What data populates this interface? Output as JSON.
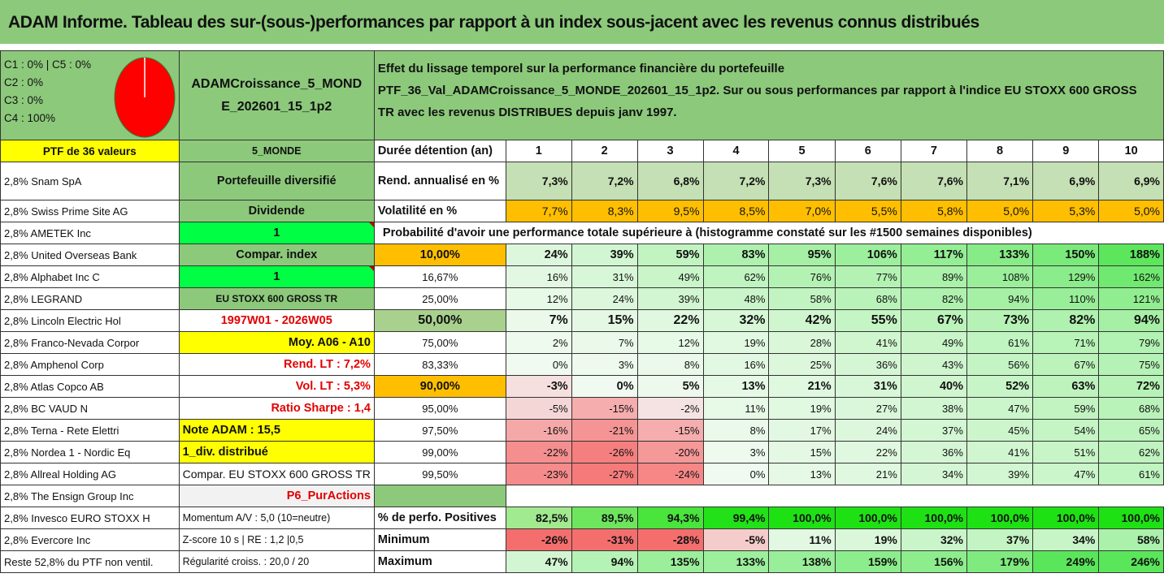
{
  "title": "ADAM Informe. Tableau des sur-(sous-)performances par rapport à un index sous-jacent avec les revenus connus distribués",
  "header": {
    "classes": [
      "C1 : 0% | C5 : 0%",
      "C2 : 0%",
      "C3 : 0%",
      "C4 : 100%"
    ],
    "portfolio_name_1": "ADAMCroissance_5_MOND",
    "portfolio_name_2": "E_202601_15_1p2",
    "description_1": "Effet du lissage temporel sur la performance financière du portefeuille",
    "description_2": "PTF_36_Val_ADAMCroissance_5_MONDE_202601_15_1p2. Sur ou sous performances par rapport à l'indice EU STOXX 600 GROSS",
    "description_3": "TR avec les revenus DISTRIBUES depuis janv 1997.",
    "pie_colors": {
      "fill": "#ff0000",
      "line": "#ffffff",
      "border": "#8cc97b"
    }
  },
  "ptf_label": "PTF de 36 valeurs",
  "ptf_code": "5_MONDE",
  "duration_label": "Durée détention (an)",
  "years": [
    "1",
    "2",
    "3",
    "4",
    "5",
    "6",
    "7",
    "8",
    "9",
    "10"
  ],
  "holdings": [
    "2,8% Snam SpA",
    "2,8% Swiss Prime Site AG",
    "2,8% AMETEK Inc",
    "2,8% United Overseas Bank",
    "2,8% Alphabet Inc C",
    "2,8% LEGRAND",
    "2,8% Lincoln Electric Hol",
    "2,8% Franco-Nevada Corpor",
    "2,8% Amphenol Corp",
    "2,8% Atlas Copco AB",
    "2,8% BC VAUD N",
    "2,8% Terna - Rete Elettri",
    "2,8% Nordea 1 - Nordic Eq",
    "2,8% Allreal Holding AG",
    "2,8% The Ensign Group Inc",
    "2,8% Invesco EURO STOXX H",
    "2,8% Evercore Inc",
    "Reste 52,8% du PTF non ventil."
  ],
  "info": [
    "Portefeuille diversifié",
    "Dividende",
    "1",
    "Compar. index",
    "1",
    "EU STOXX 600 GROSS TR",
    "1997W01 - 2026W05",
    "Moy. A06 - A10",
    "Rend. LT : 7,2%",
    "Vol. LT : 5,3%",
    "Ratio Sharpe : 1,4",
    "Note ADAM : 15,5",
    "1_div. distribué",
    "Compar. EU STOXX 600 GROSS TR",
    "P6_PurActions",
    "Momentum A/V : 5,0 (10=neutre)",
    "Z-score 10 s | RE : 1,2 |0,5",
    "Régularité croiss. : 20,0 / 20"
  ],
  "rend_label": "Rend. annualisé en %",
  "rend": [
    "7,3%",
    "7,2%",
    "6,8%",
    "7,2%",
    "7,3%",
    "7,6%",
    "7,6%",
    "7,1%",
    "6,9%",
    "6,9%"
  ],
  "vol_label": "Volatilité en %",
  "vol": [
    "7,7%",
    "8,3%",
    "9,5%",
    "8,5%",
    "7,0%",
    "5,5%",
    "5,8%",
    "5,0%",
    "5,3%",
    "5,0%"
  ],
  "prob_label": "Probabilité d'avoir une performance totale supérieure à (histogramme constaté sur les #1500 semaines disponibles)",
  "quantiles": [
    {
      "p": "10,00%",
      "v": [
        "24%",
        "39%",
        "59%",
        "83%",
        "95%",
        "106%",
        "117%",
        "133%",
        "150%",
        "188%"
      ]
    },
    {
      "p": "16,67%",
      "v": [
        "16%",
        "31%",
        "49%",
        "62%",
        "76%",
        "77%",
        "89%",
        "108%",
        "129%",
        "162%"
      ]
    },
    {
      "p": "25,00%",
      "v": [
        "12%",
        "24%",
        "39%",
        "48%",
        "58%",
        "68%",
        "82%",
        "94%",
        "110%",
        "121%"
      ]
    },
    {
      "p": "50,00%",
      "v": [
        "7%",
        "15%",
        "22%",
        "32%",
        "42%",
        "55%",
        "67%",
        "73%",
        "82%",
        "94%"
      ]
    },
    {
      "p": "75,00%",
      "v": [
        "2%",
        "7%",
        "12%",
        "19%",
        "28%",
        "41%",
        "49%",
        "61%",
        "71%",
        "79%"
      ]
    },
    {
      "p": "83,33%",
      "v": [
        "0%",
        "3%",
        "8%",
        "16%",
        "25%",
        "36%",
        "43%",
        "56%",
        "67%",
        "75%"
      ]
    },
    {
      "p": "90,00%",
      "v": [
        "-3%",
        "0%",
        "5%",
        "13%",
        "21%",
        "31%",
        "40%",
        "52%",
        "63%",
        "72%"
      ]
    },
    {
      "p": "95,00%",
      "v": [
        "-5%",
        "-15%",
        "-2%",
        "11%",
        "19%",
        "27%",
        "38%",
        "47%",
        "59%",
        "68%"
      ]
    },
    {
      "p": "97,50%",
      "v": [
        "-16%",
        "-21%",
        "-15%",
        "8%",
        "17%",
        "24%",
        "37%",
        "45%",
        "54%",
        "65%"
      ]
    },
    {
      "p": "99,00%",
      "v": [
        "-22%",
        "-26%",
        "-20%",
        "3%",
        "15%",
        "22%",
        "36%",
        "41%",
        "51%",
        "62%"
      ]
    },
    {
      "p": "99,50%",
      "v": [
        "-23%",
        "-27%",
        "-24%",
        "0%",
        "13%",
        "21%",
        "34%",
        "39%",
        "47%",
        "61%"
      ]
    }
  ],
  "pos_label": "% de perfo. Positives",
  "pos": [
    "82,5%",
    "89,5%",
    "94,3%",
    "99,4%",
    "100,0%",
    "100,0%",
    "100,0%",
    "100,0%",
    "100,0%",
    "100,0%"
  ],
  "min_label": "Minimum",
  "min": [
    "-26%",
    "-31%",
    "-28%",
    "-5%",
    "11%",
    "19%",
    "32%",
    "37%",
    "34%",
    "58%"
  ],
  "max_label": "Maximum",
  "max": [
    "47%",
    "94%",
    "135%",
    "133%",
    "138%",
    "159%",
    "156%",
    "179%",
    "249%",
    "246%"
  ]
}
